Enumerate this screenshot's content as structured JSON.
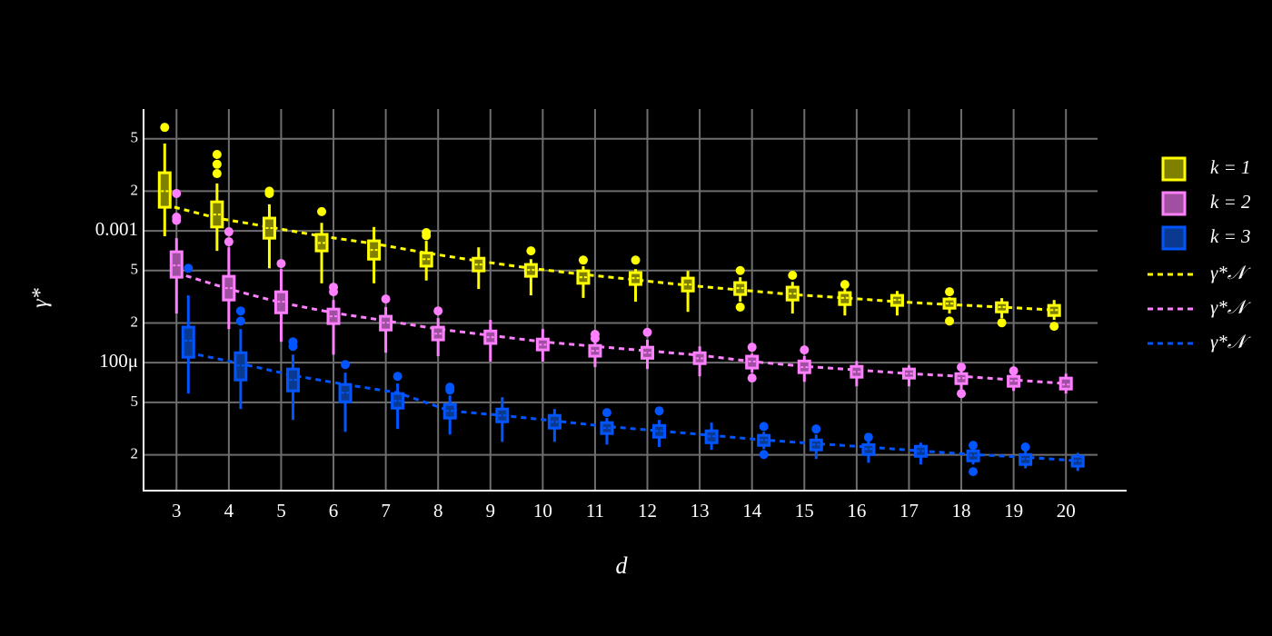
{
  "chart_data": {
    "type": "box",
    "x_label": "d",
    "y_label": "γ*",
    "log_y": true,
    "grid": true,
    "x": [
      3,
      4,
      5,
      6,
      7,
      8,
      9,
      10,
      11,
      12,
      13,
      14,
      15,
      16,
      17,
      18,
      19,
      20
    ],
    "xlim": [
      2.37,
      21.16
    ],
    "ylim": [
      1.07e-05,
      0.0084
    ],
    "yticks": [
      {
        "value": 0.005,
        "label": "5"
      },
      {
        "value": 0.002,
        "label": "2"
      },
      0.001,
      {
        "value": 0.0005,
        "label": "5"
      },
      {
        "value": 0.0002,
        "label": "2"
      },
      {
        "value": 0.0001,
        "label": "100μ"
      },
      {
        "value": 5e-05,
        "label": "5"
      },
      {
        "value": 2e-05,
        "label": "2"
      }
    ],
    "series": [
      {
        "type": "box",
        "name": "k = 1",
        "color": "#ffff00",
        "fill": "#808000",
        "boxes": [
          {
            "min": 0.00091,
            "q1": 0.00151,
            "median": 0.002,
            "q3": 0.00276,
            "max": 0.0046,
            "outliers": [
              0.0061
            ]
          },
          {
            "min": 0.000705,
            "q1": 0.00107,
            "median": 0.00133,
            "q3": 0.00166,
            "max": 0.00229,
            "outliers": [
              0.0038,
              0.0032,
              0.00272
            ]
          },
          {
            "min": 0.00052,
            "q1": 0.00088,
            "median": 0.00105,
            "q3": 0.00125,
            "max": 0.00159,
            "outliers": [
              0.002,
              0.00192
            ]
          },
          {
            "min": 0.0004,
            "q1": 0.000705,
            "median": 0.00081,
            "q3": 0.00094,
            "max": 0.00115,
            "outliers": [
              0.0014
            ]
          },
          {
            "min": 0.0004,
            "q1": 0.00061,
            "median": 0.000716,
            "q3": 0.00084,
            "max": 0.00107,
            "outliers": []
          },
          {
            "min": 0.00042,
            "q1": 0.00054,
            "median": 0.00061,
            "q3": 0.00068,
            "max": 0.00084,
            "outliers": [
              0.00097,
              0.00092
            ]
          },
          {
            "min": 0.000362,
            "q1": 0.000497,
            "median": 0.000556,
            "q3": 0.00062,
            "max": 0.00075,
            "outliers": []
          },
          {
            "min": 0.000324,
            "q1": 0.000452,
            "median": 0.000505,
            "q3": 0.000556,
            "max": 0.00061,
            "outliers": [
              0.000705
            ]
          },
          {
            "min": 0.00031,
            "q1": 0.0004,
            "median": 0.000445,
            "q3": 0.000497,
            "max": 0.00054,
            "outliers": [
              0.0006
            ]
          },
          {
            "min": 0.00029,
            "q1": 0.000392,
            "median": 0.000438,
            "q3": 0.000482,
            "max": 0.000513,
            "outliers": [
              0.0006
            ]
          },
          {
            "min": 0.000243,
            "q1": 0.00035,
            "median": 0.000392,
            "q3": 0.000438,
            "max": 0.000497,
            "outliers": []
          },
          {
            "min": 0.00029,
            "q1": 0.000329,
            "median": 0.000368,
            "q3": 0.000405,
            "max": 0.000445,
            "outliers": [
              0.0005,
              0.000264
            ]
          },
          {
            "min": 0.000236,
            "q1": 0.000299,
            "median": 0.000334,
            "q3": 0.000374,
            "max": 0.00041,
            "outliers": [
              0.00046
            ]
          },
          {
            "min": 0.000228,
            "q1": 0.000276,
            "median": 0.00031,
            "q3": 0.00034,
            "max": 0.000362,
            "outliers": [
              0.000392
            ]
          },
          {
            "min": 0.000228,
            "q1": 0.000272,
            "median": 0.000299,
            "q3": 0.000324,
            "max": 0.00035,
            "outliers": []
          },
          {
            "min": 0.000236,
            "q1": 0.000259,
            "median": 0.000281,
            "q3": 0.000304,
            "max": 0.000314,
            "outliers": [
              0.000345,
              0.000207
            ]
          },
          {
            "min": 0.000218,
            "q1": 0.000243,
            "median": 0.000264,
            "q3": 0.000285,
            "max": 0.000309,
            "outliers": [
              0.000201
            ]
          },
          {
            "min": 0.000211,
            "q1": 0.000228,
            "median": 0.000251,
            "q3": 0.000272,
            "max": 0.000299,
            "outliers": [
              0.000189
            ]
          }
        ]
      },
      {
        "type": "box",
        "name": "k = 2",
        "color": "#ff80ff",
        "fill": "#a050a0",
        "boxes": [
          {
            "min": 0.000236,
            "q1": 0.000445,
            "median": 0.000547,
            "q3": 0.000694,
            "max": 0.00088,
            "outliers": [
              0.00192,
              0.00127,
              0.0012
            ]
          },
          {
            "min": 0.00018,
            "q1": 0.000299,
            "median": 0.000368,
            "q3": 0.000452,
            "max": 0.00075,
            "outliers": [
              0.000985,
              0.000827
            ]
          },
          {
            "min": 0.000144,
            "q1": 0.000239,
            "median": 0.00029,
            "q3": 0.000345,
            "max": 0.000513,
            "outliers": [
              0.000565
            ]
          },
          {
            "min": 0.000115,
            "q1": 0.000198,
            "median": 0.000225,
            "q3": 0.000255,
            "max": 0.000299,
            "outliers": [
              0.000374,
              0.000345
            ]
          },
          {
            "min": 0.000119,
            "q1": 0.000177,
            "median": 0.000201,
            "q3": 0.000225,
            "max": 0.000264,
            "outliers": [
              0.000304
            ]
          },
          {
            "min": 0.000112,
            "q1": 0.000149,
            "median": 0.000166,
            "q3": 0.000186,
            "max": 0.000218,
            "outliers": [
              0.000247
            ]
          },
          {
            "min": 0.000102,
            "q1": 0.00014,
            "median": 0.000156,
            "q3": 0.000174,
            "max": 0.000211,
            "outliers": []
          },
          {
            "min": 0.000102,
            "q1": 0.000125,
            "median": 0.000137,
            "q3": 0.000151,
            "max": 0.00018,
            "outliers": []
          },
          {
            "min": 9.25e-05,
            "q1": 0.000112,
            "median": 0.000123,
            "q3": 0.000135,
            "max": 0.000142,
            "outliers": [
              0.000164,
              0.000153
            ]
          },
          {
            "min": 8.95e-05,
            "q1": 0.000108,
            "median": 0.000119,
            "q3": 0.000131,
            "max": 0.000149,
            "outliers": [
              0.00017
            ]
          },
          {
            "min": 7.88e-05,
            "q1": 9.84e-05,
            "median": 0.000108,
            "q3": 0.000119,
            "max": 0.000133,
            "outliers": []
          },
          {
            "min": 8.4e-05,
            "q1": 9.1e-05,
            "median": 0.000102,
            "q3": 0.000112,
            "max": 0.000117,
            "outliers": [
              0.000131,
              7.64e-05
            ]
          },
          {
            "min": 7.16e-05,
            "q1": 8.4e-05,
            "median": 9.25e-05,
            "q3": 0.000103,
            "max": 0.000112,
            "outliers": [
              0.000125
            ]
          },
          {
            "min": 6.62e-05,
            "q1": 7.76e-05,
            "median": 8.53e-05,
            "q3": 9.38e-05,
            "max": 0.000103,
            "outliers": []
          },
          {
            "min": 6.62e-05,
            "q1": 7.64e-05,
            "median": 8.26e-05,
            "q3": 8.95e-05,
            "max": 9.53e-05,
            "outliers": []
          },
          {
            "min": 6.31e-05,
            "q1": 6.94e-05,
            "median": 7.64e-05,
            "q3": 8.26e-05,
            "max": 8.81e-05,
            "outliers": [
              9.25e-05,
              5.83e-05
            ]
          },
          {
            "min": 6.11e-05,
            "q1": 6.62e-05,
            "median": 7.28e-05,
            "q3": 7.88e-05,
            "max": 8.4e-05,
            "outliers": [
              8.67e-05
            ]
          },
          {
            "min": 5.83e-05,
            "q1": 6.31e-05,
            "median": 6.83e-05,
            "q3": 7.64e-05,
            "max": 8.26e-05,
            "outliers": []
          }
        ]
      },
      {
        "type": "box",
        "name": "k = 3",
        "color": "#0055ff",
        "fill": "#0a3a90",
        "boxes": [
          {
            "min": 5.83e-05,
            "q1": 0.00011,
            "median": 0.000147,
            "q3": 0.000186,
            "max": 0.000324,
            "outliers": [
              0.00052
            ]
          },
          {
            "min": 4.45e-05,
            "q1": 7.4e-05,
            "median": 9.53e-05,
            "q3": 0.000119,
            "max": 0.00018,
            "outliers": [
              0.000247,
              0.000207
            ]
          },
          {
            "min": 3.68e-05,
            "q1": 6.11e-05,
            "median": 7.4e-05,
            "q3": 8.95e-05,
            "max": 0.000115,
            "outliers": [
              0.000144,
              0.000133
            ]
          },
          {
            "min": 2.99e-05,
            "q1": 5.05e-05,
            "median": 5.92e-05,
            "q3": 6.83e-05,
            "max": 8.4e-05,
            "outliers": [
              9.68e-05
            ]
          },
          {
            "min": 3.14e-05,
            "q1": 4.52e-05,
            "median": 5.13e-05,
            "q3": 5.83e-05,
            "max": 6.94e-05,
            "outliers": [
              7.88e-05
            ]
          },
          {
            "min": 2.85e-05,
            "q1": 3.8e-05,
            "median": 4.31e-05,
            "q3": 4.82e-05,
            "max": 5.64e-05,
            "outliers": [
              6.52e-05,
              6.2e-05
            ]
          },
          {
            "min": 2.51e-05,
            "q1": 3.56e-05,
            "median": 3.98e-05,
            "q3": 4.45e-05,
            "max": 5.47e-05,
            "outliers": []
          },
          {
            "min": 2.51e-05,
            "q1": 3.19e-05,
            "median": 3.56e-05,
            "q3": 3.98e-05,
            "max": 4.45e-05,
            "outliers": []
          },
          {
            "min": 2.39e-05,
            "q1": 2.9e-05,
            "median": 3.19e-05,
            "q3": 3.51e-05,
            "max": 3.8e-05,
            "outliers": [
              4.18e-05
            ]
          },
          {
            "min": 2.29e-05,
            "q1": 2.72e-05,
            "median": 3.04e-05,
            "q3": 3.34e-05,
            "max": 3.68e-05,
            "outliers": [
              4.31e-05
            ]
          },
          {
            "min": 2.18e-05,
            "q1": 2.47e-05,
            "median": 2.76e-05,
            "q3": 3.04e-05,
            "max": 3.51e-05,
            "outliers": []
          },
          {
            "min": 2.21e-05,
            "q1": 2.36e-05,
            "median": 2.59e-05,
            "q3": 2.81e-05,
            "max": 2.99e-05,
            "outliers": [
              3.28e-05,
              2.01e-05
            ]
          },
          {
            "min": 1.86e-05,
            "q1": 2.18e-05,
            "median": 2.39e-05,
            "q3": 2.59e-05,
            "max": 2.85e-05,
            "outliers": [
              3.14e-05
            ]
          },
          {
            "min": 1.74e-05,
            "q1": 2.01e-05,
            "median": 2.21e-05,
            "q3": 2.39e-05,
            "max": 2.55e-05,
            "outliers": [
              2.72e-05
            ]
          },
          {
            "min": 1.69e-05,
            "q1": 1.95e-05,
            "median": 2.14e-05,
            "q3": 2.32e-05,
            "max": 2.47e-05,
            "outliers": []
          },
          {
            "min": 1.69e-05,
            "q1": 1.8e-05,
            "median": 1.98e-05,
            "q3": 2.14e-05,
            "max": 2.29e-05,
            "outliers": [
              2.36e-05,
              1.49e-05
            ]
          },
          {
            "min": 1.58e-05,
            "q1": 1.69e-05,
            "median": 1.86e-05,
            "q3": 2.01e-05,
            "max": 2.14e-05,
            "outliers": [
              2.29e-05
            ]
          },
          {
            "min": 1.51e-05,
            "q1": 1.64e-05,
            "median": 1.8e-05,
            "q3": 1.95e-05,
            "max": 2.07e-05,
            "outliers": []
          }
        ]
      },
      {
        "type": "line",
        "name": "γ*𝒩",
        "color": "#ffff00",
        "values": [
          0.00158,
          0.00125,
          0.00107,
          0.00091,
          0.0008,
          0.00068,
          0.00059,
          0.00052,
          0.000467,
          0.000425,
          0.000386,
          0.000356,
          0.000329,
          0.00031,
          0.00029,
          0.000276,
          0.000264,
          0.000251
        ]
      },
      {
        "type": "line",
        "name": "γ*𝒩",
        "color": "#ff80ff",
        "values": [
          0.00048,
          0.000362,
          0.000285,
          0.000239,
          0.000208,
          0.00018,
          0.000161,
          0.000144,
          0.000133,
          0.000123,
          0.000114,
          0.000102,
          9.38e-05,
          8.81e-05,
          8.26e-05,
          7.88e-05,
          7.4e-05,
          6.94e-05
        ]
      },
      {
        "type": "line",
        "name": "γ*𝒩",
        "color": "#0055ff",
        "values": [
          0.000119,
          9.84e-05,
          8e-05,
          6.83e-05,
          5.92e-05,
          4.31e-05,
          3.98e-05,
          3.62e-05,
          3.28e-05,
          3.04e-05,
          2.81e-05,
          2.59e-05,
          2.43e-05,
          2.29e-05,
          2.14e-05,
          2.01e-05,
          1.92e-05,
          1.8e-05
        ]
      }
    ]
  }
}
